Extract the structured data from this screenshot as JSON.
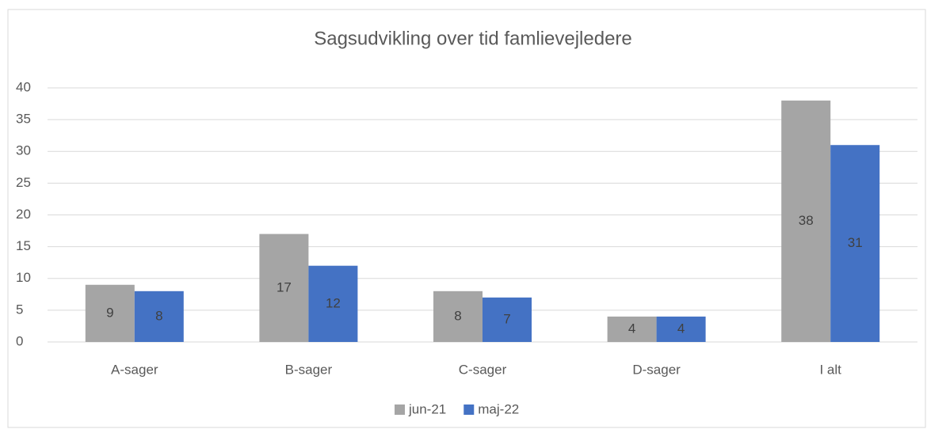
{
  "chart_data": {
    "type": "bar",
    "title": "Sagsudvikling over tid famlievejledere",
    "categories": [
      "A-sager",
      "B-sager",
      "C-sager",
      "D-sager",
      "I alt"
    ],
    "series": [
      {
        "name": "jun-21",
        "color": "#a5a5a5",
        "values": [
          9,
          17,
          8,
          4,
          38
        ]
      },
      {
        "name": "maj-22",
        "color": "#4472c4",
        "values": [
          8,
          12,
          7,
          4,
          31
        ]
      }
    ],
    "ylim": [
      0,
      40
    ],
    "yticks": [
      0,
      5,
      10,
      15,
      20,
      25,
      30,
      35,
      40
    ],
    "grid": true,
    "legend": "bottom"
  }
}
